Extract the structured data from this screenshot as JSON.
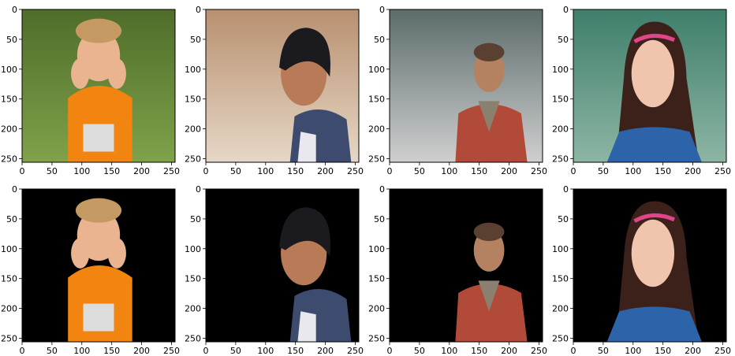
{
  "figure": {
    "rows": 2,
    "cols": 4,
    "axis": {
      "x_ticks": [
        "0",
        "50",
        "100",
        "150",
        "200",
        "250"
      ],
      "y_ticks": [
        "0",
        "50",
        "100",
        "150",
        "200",
        "250"
      ],
      "x_range": [
        0,
        256
      ],
      "y_range": [
        0,
        256
      ]
    },
    "panels": [
      {
        "id": "orig-1",
        "kind": "photo",
        "subject": "toddler-boy-orange-shirt-hands-on-cheeks",
        "background": "green-garden",
        "colors": {
          "bg": "#4f6d2a",
          "bg2": "#7fa24a",
          "skin": "#e9b48f",
          "hair": "#c49a62",
          "shirt": "#f2850f"
        }
      },
      {
        "id": "orig-2",
        "kind": "photo",
        "subject": "smiling-boy-dark-hair-denim-vest",
        "background": "blurred-warm-interior",
        "colors": {
          "bg": "#b89070",
          "bg2": "#e6d7c6",
          "skin": "#b97a58",
          "hair": "#1b1b1f",
          "shirt": "#3d4b6e"
        }
      },
      {
        "id": "orig-3",
        "kind": "photo",
        "subject": "boy-red-sweater-outdoors",
        "background": "trees-and-rocks",
        "colors": {
          "bg": "#5b6c6b",
          "bg2": "#cfcfcf",
          "skin": "#b48261",
          "hair": "#5a4030",
          "shirt": "#b24a3a"
        }
      },
      {
        "id": "orig-4",
        "kind": "photo",
        "subject": "smiling-girl-long-brown-hair-pink-headband",
        "background": "green-wooden-wall",
        "colors": {
          "bg": "#3f7f6b",
          "bg2": "#8db5a4",
          "skin": "#f0c4ad",
          "hair": "#3b211a",
          "shirt": "#2d63a8"
        }
      },
      {
        "id": "mask-1",
        "kind": "segmented",
        "subject": "toddler-boy-orange-shirt-hands-on-cheeks",
        "background": "black",
        "colors": {
          "bg": "#000000",
          "bg2": "#000000",
          "skin": "#e9b48f",
          "hair": "#c49a62",
          "shirt": "#f2850f"
        }
      },
      {
        "id": "mask-2",
        "kind": "segmented",
        "subject": "smiling-boy-dark-hair-denim-vest",
        "background": "black",
        "colors": {
          "bg": "#000000",
          "bg2": "#000000",
          "skin": "#b97a58",
          "hair": "#1b1b1f",
          "shirt": "#3d4b6e"
        }
      },
      {
        "id": "mask-3",
        "kind": "segmented",
        "subject": "boy-red-sweater-outdoors",
        "background": "black",
        "colors": {
          "bg": "#000000",
          "bg2": "#000000",
          "skin": "#b48261",
          "hair": "#5a4030",
          "shirt": "#b24a3a"
        }
      },
      {
        "id": "mask-4",
        "kind": "segmented",
        "subject": "smiling-girl-long-brown-hair-pink-headband",
        "background": "black",
        "colors": {
          "bg": "#000000",
          "bg2": "#000000",
          "skin": "#f0c4ad",
          "hair": "#3b211a",
          "shirt": "#2d63a8"
        }
      }
    ]
  }
}
